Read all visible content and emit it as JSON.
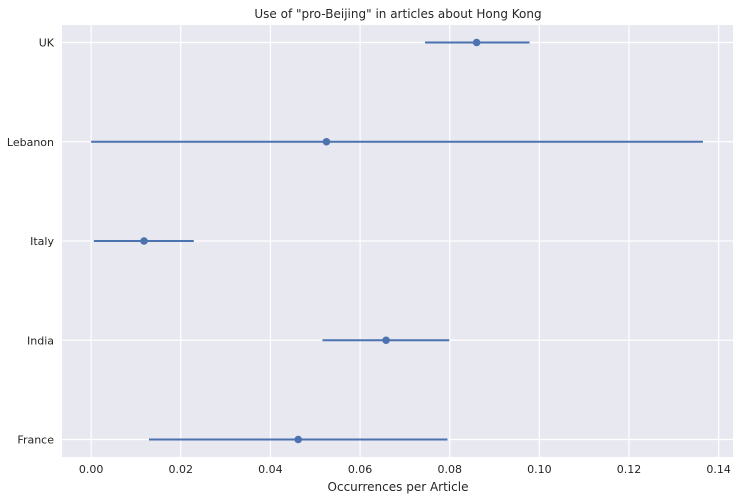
{
  "chart_data": {
    "type": "pointrange",
    "title": "Use of \"pro-Beijing\" in articles about Hong Kong",
    "xlabel": "Occurrences per Article",
    "ylabel": "",
    "xlim": [
      -0.0065,
      0.1432
    ],
    "xticks": [
      0.0,
      0.02,
      0.04,
      0.06,
      0.08,
      0.1,
      0.12,
      0.14
    ],
    "xtick_labels": [
      "0.00",
      "0.02",
      "0.04",
      "0.06",
      "0.08",
      "0.10",
      "0.12",
      "0.14"
    ],
    "grid": true,
    "background": "#e8e8f0",
    "grid_color": "#ffffff",
    "point_color": "#4c72b0",
    "categories": [
      {
        "label": "UK",
        "value": 0.086,
        "lo": 0.0745,
        "hi": 0.0978
      },
      {
        "label": "Lebanon",
        "value": 0.0525,
        "lo": 0.0,
        "hi": 0.1365
      },
      {
        "label": "Italy",
        "value": 0.0118,
        "lo": 0.0006,
        "hi": 0.0229
      },
      {
        "label": "India",
        "value": 0.0658,
        "lo": 0.0516,
        "hi": 0.0799
      },
      {
        "label": "France",
        "value": 0.0462,
        "lo": 0.0129,
        "hi": 0.0795
      }
    ]
  }
}
